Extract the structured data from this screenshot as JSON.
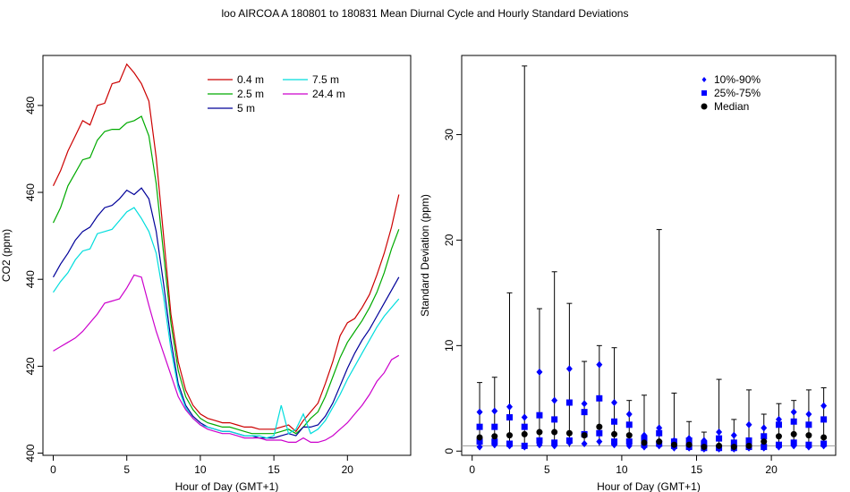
{
  "title": "loo   AIRCOA A   180801 to 180831   Mean Diurnal Cycle and Hourly Standard Deviations",
  "chart_data": [
    {
      "type": "line",
      "xlabel": "Hour of Day (GMT+1)",
      "ylabel": "CO2 (ppm)",
      "xlim": [
        -0.7,
        24.3
      ],
      "ylim": [
        399.5,
        491.5
      ],
      "xticks": [
        0,
        5,
        10,
        15,
        20
      ],
      "yticks": [
        400,
        420,
        440,
        460,
        480
      ],
      "x": [
        0,
        0.5,
        1,
        1.5,
        2,
        2.5,
        3,
        3.5,
        4,
        4.5,
        5,
        5.5,
        6,
        6.5,
        7,
        7.5,
        8,
        8.5,
        9,
        9.5,
        10,
        10.5,
        11,
        11.5,
        12,
        12.5,
        13,
        13.5,
        14,
        14.5,
        15,
        15.5,
        16,
        16.5,
        17,
        17.5,
        18,
        18.5,
        19,
        19.5,
        20,
        20.5,
        21,
        21.5,
        22,
        22.5,
        23,
        23.5
      ],
      "legend_position": "top-right",
      "grid": false,
      "series": [
        {
          "name": "0.4 m",
          "color": "#cc0000",
          "values": [
            461.5,
            465.0,
            469.5,
            473.0,
            476.5,
            475.5,
            480.0,
            480.5,
            485.0,
            485.5,
            489.5,
            487.5,
            485.0,
            481.0,
            468.0,
            450.0,
            432.0,
            421.0,
            414.5,
            411.0,
            409.0,
            408.0,
            407.5,
            407.0,
            407.0,
            406.5,
            406.0,
            406.0,
            405.5,
            405.5,
            405.5,
            406.0,
            406.5,
            405.0,
            407.5,
            409.5,
            411.5,
            416.0,
            421.0,
            427.0,
            430.0,
            431.0,
            433.5,
            436.5,
            441.0,
            446.0,
            452.0,
            459.5
          ]
        },
        {
          "name": "2.5 m",
          "color": "#00aa00",
          "values": [
            453.0,
            456.5,
            461.5,
            464.5,
            467.5,
            468.0,
            472.0,
            474.0,
            474.5,
            474.5,
            476.0,
            476.5,
            477.5,
            473.0,
            462.0,
            446.0,
            430.0,
            419.0,
            413.0,
            410.0,
            408.0,
            407.0,
            406.5,
            406.0,
            406.0,
            405.5,
            405.0,
            404.5,
            404.5,
            404.5,
            404.5,
            405.0,
            405.5,
            404.5,
            406.0,
            408.0,
            409.5,
            413.0,
            417.5,
            422.0,
            425.5,
            428.0,
            430.5,
            433.5,
            437.0,
            441.5,
            447.0,
            451.5
          ]
        },
        {
          "name": "5 m",
          "color": "#000099",
          "values": [
            440.5,
            443.5,
            446.0,
            449.0,
            451.0,
            452.0,
            454.5,
            456.5,
            457.0,
            458.5,
            460.5,
            459.5,
            461.0,
            458.5,
            451.0,
            439.0,
            426.0,
            416.0,
            411.0,
            408.5,
            407.0,
            406.0,
            405.5,
            405.0,
            405.0,
            404.5,
            404.0,
            404.0,
            403.5,
            403.5,
            403.5,
            404.0,
            404.5,
            404.0,
            406.0,
            406.0,
            406.5,
            408.5,
            411.5,
            415.5,
            419.5,
            423.0,
            426.0,
            428.5,
            431.5,
            434.5,
            437.5,
            440.5
          ]
        },
        {
          "name": "7.5 m",
          "color": "#00dddd",
          "values": [
            437.0,
            439.5,
            441.5,
            444.5,
            446.5,
            447.0,
            450.5,
            451.0,
            451.5,
            453.5,
            455.5,
            456.5,
            454.0,
            451.0,
            446.0,
            436.0,
            424.0,
            415.0,
            410.5,
            408.0,
            406.5,
            406.0,
            405.5,
            405.0,
            405.0,
            404.5,
            404.0,
            404.0,
            404.0,
            403.5,
            404.0,
            411.0,
            404.5,
            405.5,
            409.0,
            404.5,
            405.5,
            407.5,
            410.5,
            413.5,
            417.0,
            420.0,
            423.0,
            426.0,
            429.0,
            431.5,
            433.5,
            435.5
          ]
        },
        {
          "name": "24.4 m",
          "color": "#cc00cc",
          "values": [
            423.5,
            424.5,
            425.5,
            426.5,
            428.0,
            430.0,
            432.0,
            434.5,
            435.0,
            435.5,
            438.0,
            441.0,
            440.5,
            434.0,
            428.0,
            423.0,
            418.0,
            413.0,
            410.0,
            408.0,
            406.5,
            405.5,
            405.0,
            404.5,
            404.5,
            404.0,
            403.5,
            403.5,
            403.5,
            403.0,
            403.0,
            403.0,
            402.5,
            402.5,
            403.5,
            402.5,
            402.5,
            403.0,
            404.0,
            405.5,
            407.0,
            409.0,
            411.0,
            413.5,
            416.5,
            418.5,
            421.5,
            422.5
          ]
        }
      ]
    },
    {
      "type": "scatter",
      "xlabel": "Hour of Day (GMT+1)",
      "ylabel": "Standard Deviation (ppm)",
      "xlim": [
        -0.7,
        24.3
      ],
      "ylim": [
        -0.4,
        37.5
      ],
      "xticks": [
        0,
        5,
        10,
        15,
        20
      ],
      "yticks": [
        0,
        10,
        20,
        30
      ],
      "reference_line_y": 0.5,
      "marker_color": "#0000ff",
      "median_color": "#000000",
      "legend_position": "top-right",
      "legend": [
        {
          "label": "10%-90%",
          "marker": "diamond",
          "color": "#0000ff"
        },
        {
          "label": "25%-75%",
          "marker": "square",
          "color": "#0000ff"
        },
        {
          "label": "Median",
          "marker": "circle",
          "color": "#000000"
        }
      ],
      "x": [
        0.5,
        1.5,
        2.5,
        3.5,
        4.5,
        5.5,
        6.5,
        7.5,
        8.5,
        9.5,
        10.5,
        11.5,
        12.5,
        13.5,
        14.5,
        15.5,
        16.5,
        17.5,
        18.5,
        19.5,
        20.5,
        21.5,
        22.5,
        23.5
      ],
      "max": [
        6.5,
        7.0,
        15.0,
        36.5,
        13.5,
        17.0,
        14.0,
        8.5,
        10.0,
        9.8,
        4.8,
        5.3,
        21.0,
        5.5,
        2.8,
        1.8,
        6.8,
        3.0,
        5.8,
        3.5,
        4.5,
        4.8,
        5.8,
        6.0
      ],
      "p90": [
        3.7,
        3.8,
        4.2,
        3.2,
        7.5,
        4.8,
        7.8,
        4.5,
        8.2,
        4.6,
        3.5,
        1.5,
        2.2,
        1.0,
        1.2,
        1.0,
        1.8,
        1.5,
        2.5,
        2.2,
        3.0,
        3.7,
        3.5,
        4.3
      ],
      "p75": [
        2.3,
        2.3,
        3.2,
        2.3,
        3.4,
        3.0,
        4.6,
        3.7,
        5.0,
        2.8,
        2.5,
        1.2,
        1.7,
        0.9,
        1.0,
        0.7,
        1.2,
        0.8,
        1.0,
        1.4,
        2.5,
        2.8,
        2.5,
        3.0
      ],
      "median": [
        1.3,
        1.4,
        1.5,
        1.6,
        1.8,
        1.8,
        1.7,
        1.5,
        2.3,
        1.6,
        1.5,
        0.8,
        0.9,
        0.6,
        0.6,
        0.4,
        0.5,
        0.4,
        0.5,
        0.9,
        1.4,
        1.6,
        1.5,
        1.3
      ],
      "p25": [
        0.9,
        0.9,
        0.7,
        0.5,
        1.0,
        0.8,
        1.0,
        1.6,
        1.7,
        0.9,
        0.9,
        0.6,
        0.7,
        0.5,
        0.4,
        0.3,
        0.3,
        0.3,
        0.4,
        0.4,
        0.6,
        0.8,
        0.6,
        0.7
      ],
      "p10": [
        0.4,
        0.6,
        0.5,
        0.4,
        0.6,
        0.5,
        0.8,
        0.7,
        0.9,
        0.6,
        0.5,
        0.4,
        0.5,
        0.3,
        0.3,
        0.2,
        0.2,
        0.2,
        0.3,
        0.3,
        0.4,
        0.5,
        0.4,
        0.5
      ],
      "min": [
        0.2,
        0.3,
        0.3,
        0.2,
        0.4,
        0.3,
        0.4,
        0.4,
        0.5,
        0.4,
        0.3,
        0.2,
        0.3,
        0.2,
        0.2,
        0.1,
        0.1,
        0.1,
        0.2,
        0.2,
        0.2,
        0.3,
        0.2,
        0.3
      ]
    }
  ]
}
